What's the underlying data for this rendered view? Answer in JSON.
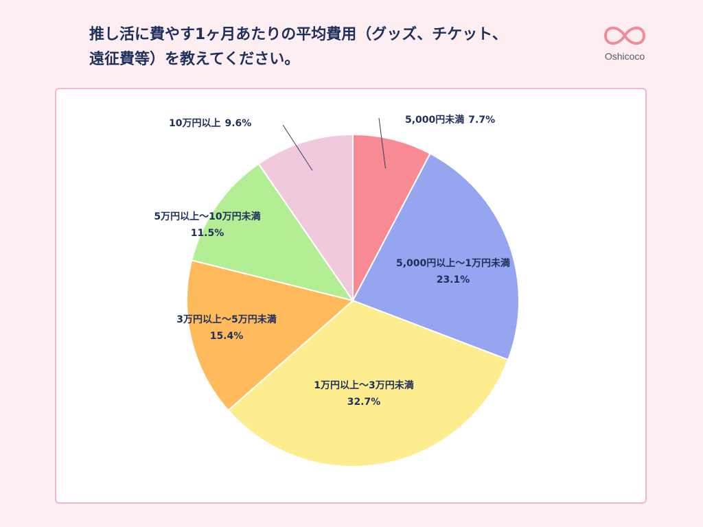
{
  "title": {
    "line1": "推し活に費やす1ヶ月あたりの平均費用（グッズ、チケット、",
    "line2": "遠征費等）を教えてください。"
  },
  "brand": {
    "name": "Oshicoco",
    "color": "#f08b9a"
  },
  "chart_data": {
    "type": "pie",
    "start": "12 o'clock",
    "direction": "clockwise",
    "slices": [
      {
        "label": "5,000円未満",
        "value": 7.7,
        "value_label": "7.7%",
        "color": "#f78a92"
      },
      {
        "label": "5,000円以上〜1万円未満",
        "value": 23.1,
        "value_label": "23.1%",
        "color": "#96a5ef"
      },
      {
        "label": "1万円以上〜3万円未満",
        "value": 32.7,
        "value_label": "32.7%",
        "color": "#fded8f"
      },
      {
        "label": "3万円以上〜5万円未満",
        "value": 15.4,
        "value_label": "15.4%",
        "color": "#feba5b"
      },
      {
        "label": "5万円以上〜10万円未満",
        "value": 11.5,
        "value_label": "11.5%",
        "color": "#b3ee94"
      },
      {
        "label": "10万円以上",
        "value": 9.6,
        "value_label": "9.6%",
        "color": "#f1c9dc"
      }
    ]
  }
}
